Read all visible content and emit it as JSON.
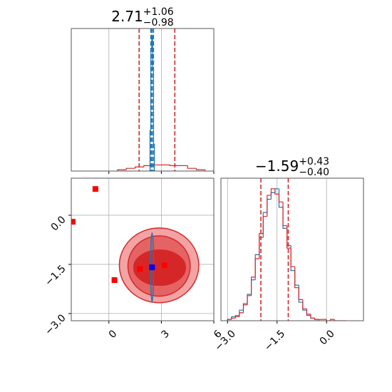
{
  "chart_data": [
    {
      "type": "hist",
      "title": {
        "value": "2.71",
        "plus": "+1.06",
        "minus": "−0.98"
      },
      "xlim": [
        -2.15,
        6
      ],
      "ylim": [
        0,
        1.05
      ],
      "xticks": [
        0,
        3,
        6
      ],
      "grid": true,
      "show_xtick_labels": false,
      "series": [
        {
          "color": "#d62728",
          "bins": [
            0.5,
            1.0,
            1.5,
            2.0,
            2.5,
            3.0,
            3.5,
            4.0,
            4.5,
            5.0,
            5.5
          ],
          "values": [
            0.01,
            0.02,
            0.03,
            0.04,
            0.045,
            0.045,
            0.04,
            0.04,
            0.02,
            0.01
          ],
          "quantiles": [
            1.73,
            3.77
          ]
        },
        {
          "color": "#1f77b4",
          "bins": [
            2.35,
            2.4,
            2.45,
            2.5,
            2.55,
            2.6
          ],
          "values": [
            0.3,
            0.9,
            1.0,
            0.75,
            0.2
          ],
          "quantiles": [
            2.4,
            2.47,
            2.55
          ]
        }
      ]
    },
    {
      "type": "contour2d",
      "xlim": [
        -2.15,
        6
      ],
      "ylim": [
        -3.22,
        1.13
      ],
      "xticks": [
        0,
        3,
        6
      ],
      "yticks": [
        {
          "value": 0,
          "label": "0.0"
        },
        {
          "value": -1.5,
          "label": "−1.5"
        },
        {
          "value": -3,
          "label": "−3.0"
        }
      ],
      "grid": true,
      "series": [
        {
          "color": "#d62728",
          "fills": [
            "#f3a3a3",
            "#e56363",
            "#d62728"
          ],
          "contours": [
            {
              "x": 2.87,
              "y": -1.53,
              "rx": 2.27,
              "ry": 1.14
            },
            {
              "x": 2.87,
              "y": -1.55,
              "rx": 1.78,
              "ry": 0.92
            },
            {
              "x": 2.9,
              "y": -1.6,
              "rx": 1.48,
              "ry": 0.54
            }
          ]
        },
        {
          "color": "#1f77b4",
          "fills": [
            "none"
          ],
          "contours": [
            {
              "x": 2.47,
              "y": -1.59,
              "rx": 0.08,
              "ry": 1.05
            }
          ]
        }
      ],
      "points": {
        "color": "#ff0000",
        "x": [
          -0.77,
          -2.07,
          0.32,
          1.78,
          3.19
        ],
        "y": [
          0.8,
          -0.2,
          -1.98,
          -1.64,
          -1.53
        ]
      },
      "marker": {
        "color": "#0000ff",
        "x": 2.47,
        "y": -1.59
      }
    },
    {
      "type": "hist",
      "title": {
        "value": "−1.59",
        "plus": "+0.43",
        "minus": "−0.40"
      },
      "xlim": [
        -3.2,
        1.12
      ],
      "ylim": [
        0,
        1.08
      ],
      "xticks": [
        {
          "value": -3,
          "label": "−3.0"
        },
        {
          "value": -1.5,
          "label": "−1.5"
        },
        {
          "value": 0,
          "label": "0.0"
        }
      ],
      "grid": true,
      "show_xtick_labels": true,
      "series": [
        {
          "color": "#1f77b4",
          "bins": [
            -3.0,
            -2.88,
            -2.76,
            -2.64,
            -2.52,
            -2.4,
            -2.28,
            -2.16,
            -2.04,
            -1.92,
            -1.8,
            -1.68,
            -1.56,
            -1.44,
            -1.32,
            -1.2,
            -1.08,
            -0.96,
            -0.84,
            -0.72,
            -0.6,
            -0.48,
            -0.36,
            -0.24
          ],
          "values": [
            0.01,
            0.03,
            0.04,
            0.08,
            0.13,
            0.2,
            0.31,
            0.5,
            0.63,
            0.82,
            0.92,
            0.97,
            1.0,
            0.86,
            0.7,
            0.57,
            0.38,
            0.27,
            0.14,
            0.08,
            0.04,
            0.02,
            0.01
          ]
        },
        {
          "color": "#d62728",
          "bins": [
            -3.0,
            -2.88,
            -2.76,
            -2.64,
            -2.52,
            -2.4,
            -2.28,
            -2.16,
            -2.04,
            -1.92,
            -1.8,
            -1.68,
            -1.56,
            -1.44,
            -1.32,
            -1.2,
            -1.08,
            -0.96,
            -0.84,
            -0.72,
            -0.6,
            -0.48,
            -0.36,
            -0.24,
            -0.12,
            0.0,
            0.12,
            0.24,
            0.36,
            0.48,
            0.6
          ],
          "values": [
            0.01,
            0.02,
            0.03,
            0.06,
            0.12,
            0.19,
            0.33,
            0.47,
            0.66,
            0.79,
            0.95,
            1.0,
            0.96,
            0.9,
            0.72,
            0.55,
            0.41,
            0.25,
            0.16,
            0.09,
            0.05,
            0.02,
            0.01,
            0.01,
            0.01,
            0.0,
            0.01,
            0.0,
            0.0,
            0.0
          ],
          "quantiles": [
            -1.99,
            -1.16
          ]
        }
      ]
    }
  ]
}
